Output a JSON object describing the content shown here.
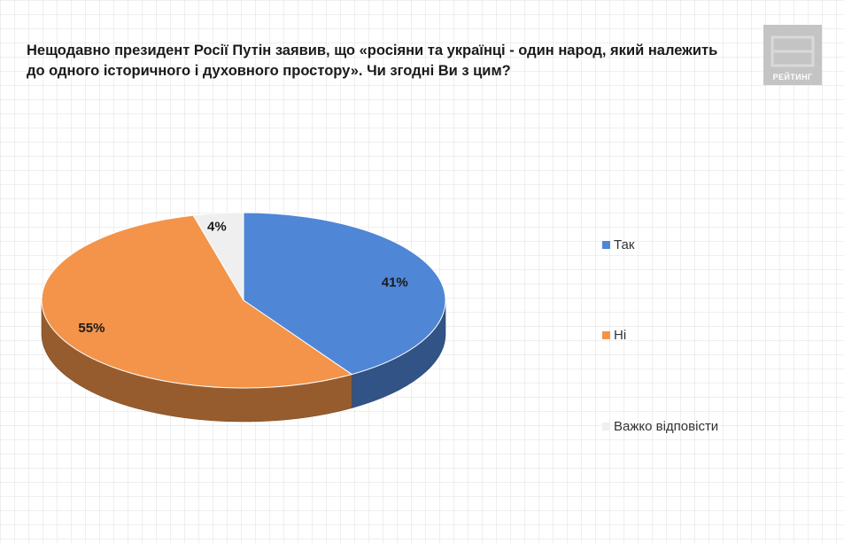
{
  "title": "Нещодавно президент Росії Путін заявив, що «росіяни та українці - один народ, який належить до одного історичного і духовного простору». Чи згодні Ви з цим?",
  "logo": {
    "text": "РЕЙТИНГ"
  },
  "chart_data": {
    "type": "pie",
    "title": "Нещодавно президент Росії Путін заявив, що «росіяни та українці - один народ, який належить до одного історичного і духовного простору». Чи згодні Ви з цим?",
    "categories": [
      "Так",
      "Ні",
      "Важко відповісти"
    ],
    "values": [
      41,
      55,
      4
    ],
    "value_labels": [
      "41%",
      "55%",
      "4%"
    ],
    "colors": [
      "#4f86d6",
      "#f3944a",
      "#efefef"
    ],
    "legend_position": "right",
    "three_d": true
  }
}
